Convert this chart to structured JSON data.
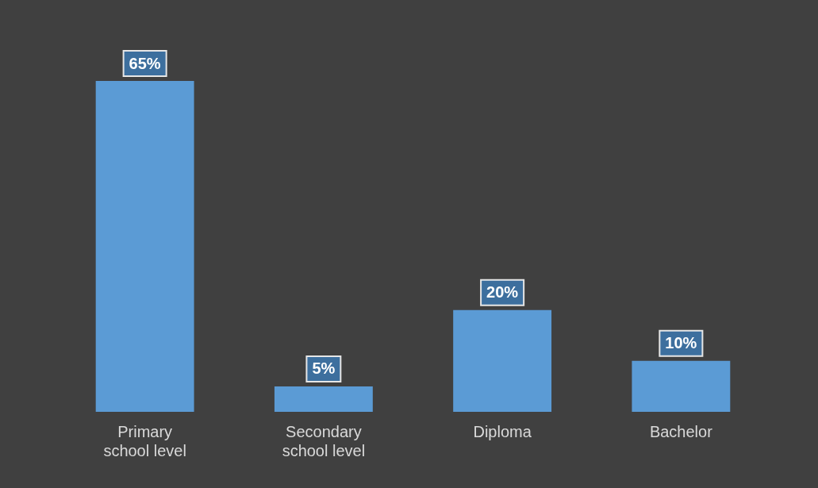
{
  "chart_data": {
    "type": "bar",
    "categories": [
      "Primary school level",
      "Secondary school level",
      "Diploma",
      "Bachelor"
    ],
    "values": [
      65,
      5,
      20,
      10
    ],
    "color": "#5b9bd5",
    "value_labels": [
      "65%",
      "5%",
      "20%",
      "10%"
    ],
    "grid": false,
    "legend": false
  }
}
